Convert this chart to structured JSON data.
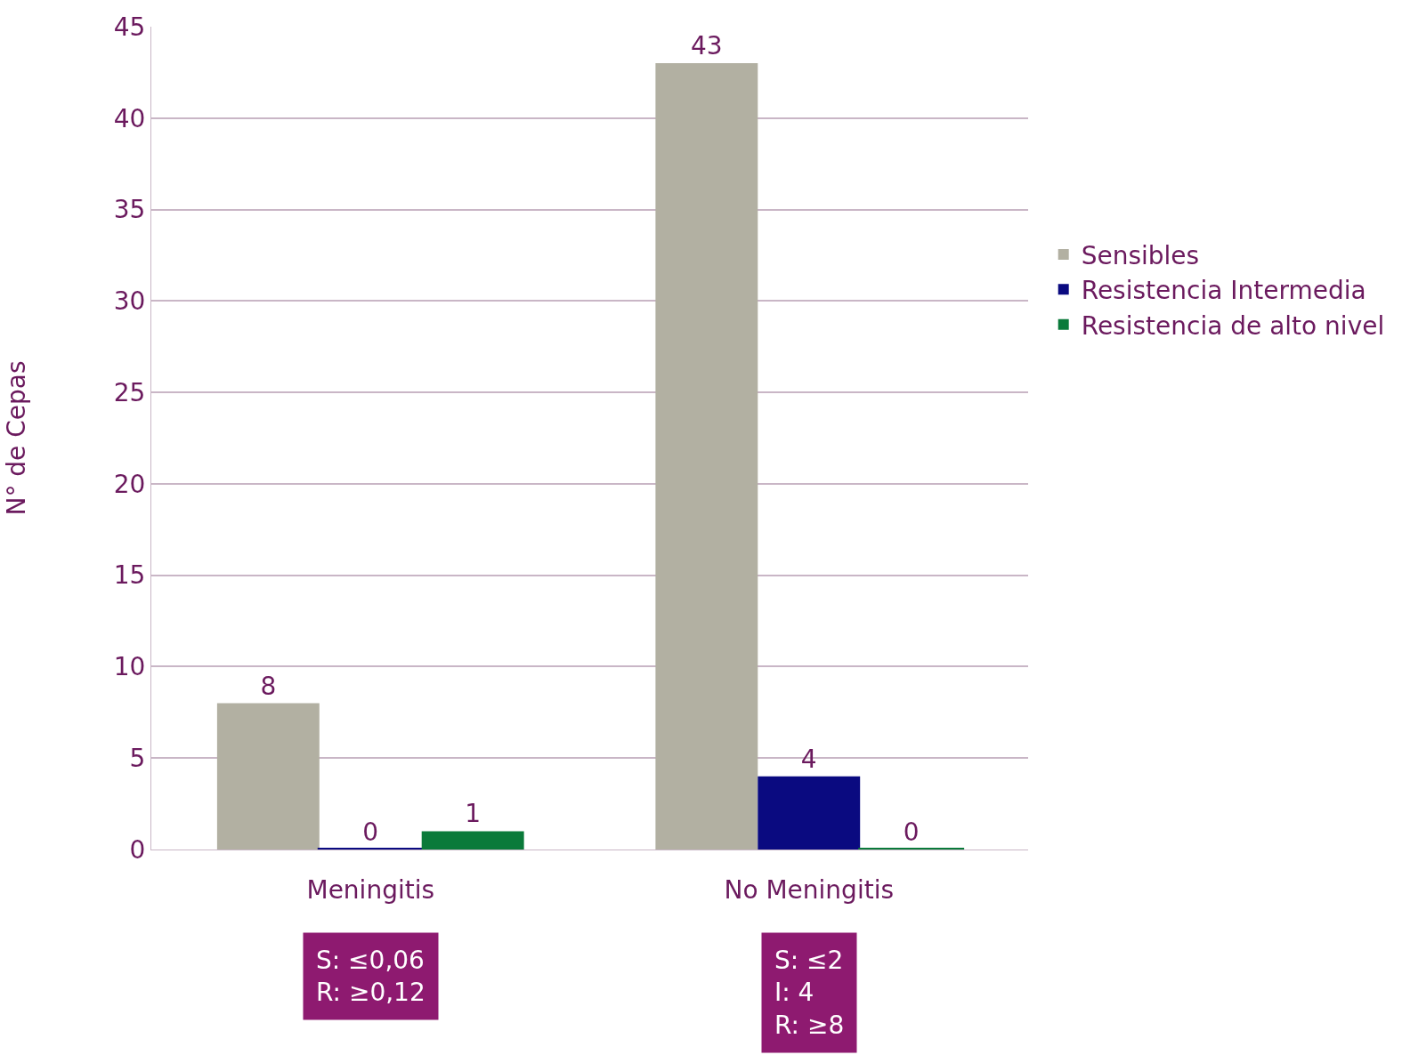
{
  "chart_data": {
    "type": "bar",
    "ylabel": "N° de Cepas",
    "categories": [
      "Meningitis",
      "No Meningitis"
    ],
    "series": [
      {
        "name": "Sensibles",
        "color": "#b2b0a2",
        "values": [
          8,
          43
        ]
      },
      {
        "name": "Resistencia Intermedia",
        "color": "#0a0a80",
        "values": [
          0,
          4
        ]
      },
      {
        "name": "Resistencia de alto nivel",
        "color": "#0a7a3a",
        "values": [
          1,
          0
        ]
      }
    ],
    "ylim": [
      0,
      45
    ],
    "yticks": [
      0,
      5,
      10,
      15,
      20,
      25,
      30,
      35,
      40,
      45
    ],
    "grid": "y",
    "legend": "right",
    "data_labels": true,
    "annotations": [
      "S: ≤0,06\nR: ≥0,12",
      "S: ≤2\nI: 4\nR: ≥8"
    ]
  }
}
